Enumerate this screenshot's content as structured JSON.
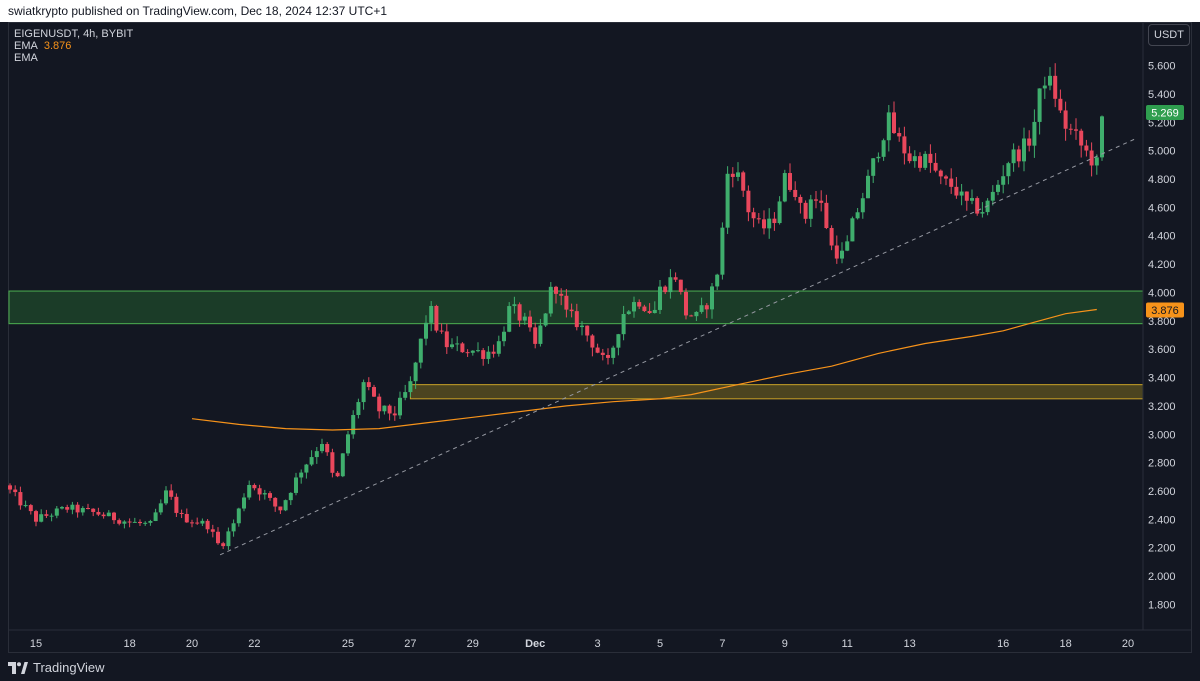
{
  "header": {
    "publish_line": "swiatkrypto published on TradingView.com, Dec 18, 2024 12:37 UTC+1"
  },
  "legend": {
    "symbol_line": "EIGENUSDT, 4h, BYBIT",
    "ema1_label": "EMA",
    "ema1_value": "3.876",
    "ema2_label": "EMA"
  },
  "currency_label": "USDT",
  "footer": {
    "brand": "TradingView"
  },
  "colors": {
    "background": "#131722",
    "up": "#26a69a",
    "up_candle": "#3fae6d",
    "down": "#e9475c",
    "ema": "#f7931a",
    "green_zone": "#1f4a2b",
    "yellow_zone": "#5a5020",
    "price_tag_current": "#2f9e4f",
    "price_tag_ema": "#f7931a"
  },
  "chart_data": {
    "type": "candlestick",
    "symbol": "EIGENUSDT",
    "timeframe": "4h",
    "exchange": "BYBIT",
    "y_ticks": [
      "1.800",
      "2.000",
      "2.200",
      "2.400",
      "2.600",
      "2.800",
      "3.000",
      "3.200",
      "3.400",
      "3.600",
      "3.800",
      "4.000",
      "4.200",
      "4.400",
      "4.600",
      "4.800",
      "5.000",
      "5.200",
      "5.400",
      "5.600"
    ],
    "ylim": [
      1.62,
      5.9
    ],
    "x_ticks": [
      {
        "label": "15",
        "day": 15
      },
      {
        "label": "18",
        "day": 18
      },
      {
        "label": "20",
        "day": 20
      },
      {
        "label": "22",
        "day": 22
      },
      {
        "label": "25",
        "day": 25
      },
      {
        "label": "27",
        "day": 27
      },
      {
        "label": "29",
        "day": 29
      },
      {
        "label": "Dec",
        "day": 31
      },
      {
        "label": "3",
        "day": 33
      },
      {
        "label": "5",
        "day": 35
      },
      {
        "label": "7",
        "day": 37
      },
      {
        "label": "9",
        "day": 39
      },
      {
        "label": "11",
        "day": 41
      },
      {
        "label": "13",
        "day": 43
      },
      {
        "label": "16",
        "day": 46
      },
      {
        "label": "18",
        "day": 48
      },
      {
        "label": "20",
        "day": 50
      }
    ],
    "last_price": "5.269",
    "ema_value": "3.876",
    "zones": [
      {
        "name": "resistance-support-zone",
        "low": 3.78,
        "high": 4.01,
        "day_start": 14.0,
        "day_end": 50.5
      },
      {
        "name": "demand-zone",
        "low": 3.25,
        "high": 3.35,
        "day_start": 27.0,
        "day_end": 50.5
      }
    ],
    "trendline": {
      "points": [
        [
          20.9,
          2.15
        ],
        [
          50.2,
          5.08
        ]
      ]
    },
    "ema_line": [
      [
        20.0,
        3.11
      ],
      [
        21.5,
        3.07
      ],
      [
        23.0,
        3.04
      ],
      [
        24.5,
        3.03
      ],
      [
        26.0,
        3.04
      ],
      [
        27.5,
        3.08
      ],
      [
        29.0,
        3.12
      ],
      [
        30.5,
        3.16
      ],
      [
        32.0,
        3.2
      ],
      [
        33.5,
        3.23
      ],
      [
        35.0,
        3.25
      ],
      [
        36.0,
        3.28
      ],
      [
        37.5,
        3.35
      ],
      [
        39.0,
        3.42
      ],
      [
        40.5,
        3.48
      ],
      [
        42.0,
        3.57
      ],
      [
        43.5,
        3.64
      ],
      [
        45.0,
        3.69
      ],
      [
        46.0,
        3.73
      ],
      [
        47.0,
        3.79
      ],
      [
        48.0,
        3.85
      ],
      [
        49.0,
        3.88
      ]
    ],
    "anchors": [
      [
        14.0,
        2.64
      ],
      [
        15.0,
        2.4
      ],
      [
        16.0,
        2.48
      ],
      [
        17.0,
        2.44
      ],
      [
        18.0,
        2.38
      ],
      [
        18.7,
        2.36
      ],
      [
        19.2,
        2.6
      ],
      [
        19.6,
        2.42
      ],
      [
        20.5,
        2.36
      ],
      [
        20.9,
        2.2
      ],
      [
        21.4,
        2.4
      ],
      [
        21.8,
        2.66
      ],
      [
        22.3,
        2.58
      ],
      [
        22.8,
        2.46
      ],
      [
        23.5,
        2.75
      ],
      [
        24.2,
        2.96
      ],
      [
        24.6,
        2.63
      ],
      [
        25.0,
        3.0
      ],
      [
        25.5,
        3.36
      ],
      [
        26.0,
        3.17
      ],
      [
        26.5,
        3.15
      ],
      [
        27.0,
        3.35
      ],
      [
        27.3,
        3.62
      ],
      [
        27.6,
        3.9
      ],
      [
        27.9,
        3.72
      ],
      [
        28.2,
        3.62
      ],
      [
        28.8,
        3.6
      ],
      [
        29.4,
        3.57
      ],
      [
        29.8,
        3.62
      ],
      [
        30.2,
        3.9
      ],
      [
        30.7,
        3.78
      ],
      [
        31.0,
        3.62
      ],
      [
        31.6,
        4.08
      ],
      [
        32.0,
        3.85
      ],
      [
        32.4,
        3.78
      ],
      [
        32.8,
        3.66
      ],
      [
        33.3,
        3.47
      ],
      [
        33.8,
        3.85
      ],
      [
        34.3,
        3.95
      ],
      [
        34.8,
        3.85
      ],
      [
        35.0,
        4.02
      ],
      [
        35.5,
        4.12
      ],
      [
        35.8,
        3.86
      ],
      [
        36.2,
        3.82
      ],
      [
        36.6,
        3.96
      ],
      [
        36.9,
        4.2
      ],
      [
        37.2,
        4.92
      ],
      [
        37.6,
        4.78
      ],
      [
        37.8,
        4.6
      ],
      [
        38.2,
        4.45
      ],
      [
        38.6,
        4.48
      ],
      [
        39.0,
        4.8
      ],
      [
        39.4,
        4.72
      ],
      [
        39.6,
        4.45
      ],
      [
        39.8,
        4.7
      ],
      [
        40.2,
        4.6
      ],
      [
        40.5,
        4.32
      ],
      [
        40.9,
        4.25
      ],
      [
        41.2,
        4.5
      ],
      [
        41.6,
        4.74
      ],
      [
        41.9,
        4.95
      ],
      [
        42.3,
        5.22
      ],
      [
        42.7,
        5.05
      ],
      [
        43.0,
        4.95
      ],
      [
        43.6,
        4.93
      ],
      [
        44.0,
        4.78
      ],
      [
        44.4,
        4.75
      ],
      [
        44.8,
        4.62
      ],
      [
        45.4,
        4.58
      ],
      [
        45.8,
        4.75
      ],
      [
        46.2,
        4.95
      ],
      [
        46.6,
        5.0
      ],
      [
        46.9,
        5.1
      ],
      [
        47.3,
        5.52
      ],
      [
        47.6,
        5.45
      ],
      [
        47.9,
        5.2
      ],
      [
        48.3,
        5.1
      ],
      [
        48.6,
        5.0
      ],
      [
        49.0,
        4.9
      ],
      [
        49.2,
        5.27
      ]
    ]
  }
}
